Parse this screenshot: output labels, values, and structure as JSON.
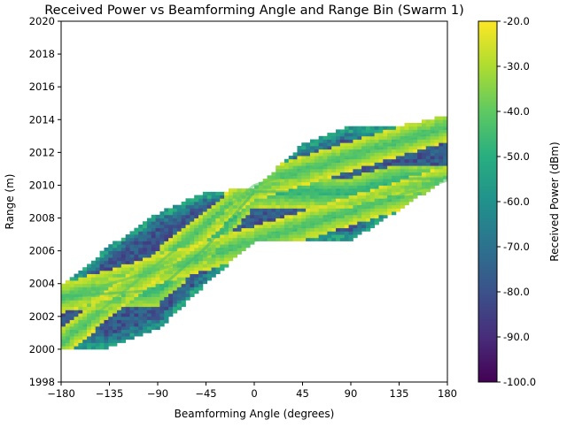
{
  "chart_data": {
    "type": "heatmap",
    "title": "Received Power vs Beamforming Angle and Range Bin (Swarm 1)",
    "xlabel": "Beamforming Angle (degrees)",
    "ylabel": "Range (m)",
    "xlim": [
      -180,
      180
    ],
    "ylim": [
      1998,
      2020
    ],
    "xticks": [
      -180,
      -135,
      -90,
      -45,
      0,
      45,
      90,
      135,
      180
    ],
    "xtick_labels": [
      "−180",
      "−135",
      "−90",
      "−45",
      "0",
      "45",
      "90",
      "135",
      "180"
    ],
    "yticks": [
      1998,
      2000,
      2002,
      2004,
      2006,
      2008,
      2010,
      2012,
      2014,
      2016,
      2018,
      2020
    ],
    "ytick_labels": [
      "1998",
      "2000",
      "2002",
      "2004",
      "2006",
      "2008",
      "2010",
      "2012",
      "2014",
      "2016",
      "2018",
      "2020"
    ],
    "colorbar": {
      "label": "Received Power (dBm)",
      "colormap": "viridis",
      "range": [
        -100,
        -20
      ],
      "ticks": [
        -20,
        -30,
        -40,
        -50,
        -60,
        -70,
        -80,
        -90,
        -100
      ],
      "tick_labels": [
        "-20.0",
        "-30.0",
        "-40.0",
        "-50.0",
        "-60.0",
        "-70.0",
        "-80.0",
        "-90.0",
        "-100.0"
      ]
    },
    "region": {
      "description_angles": [
        -180,
        -135,
        -90,
        -45,
        0,
        45,
        90,
        135,
        180
      ],
      "lower_range": [
        2000.0,
        2000.1,
        2001.2,
        2004.0,
        2006.6,
        2006.6,
        2006.6,
        2008.5,
        2010.4
      ],
      "upper_range": [
        2003.8,
        2006.3,
        2008.3,
        2009.6,
        2009.8,
        2012.5,
        2013.6,
        2013.6,
        2014.3
      ],
      "background_level": -78
    },
    "ridges": [
      {
        "angle": [
          -180,
          0,
          180
        ],
        "range": [
          2003.1,
          2006.6,
          2010.3
        ],
        "level": -45
      },
      {
        "angle": [
          -180,
          0,
          180
        ],
        "range": [
          2000.4,
          2010.0,
          2013.6
        ],
        "level": -45
      },
      {
        "angle": [
          -180,
          -90,
          -45,
          0,
          45,
          90,
          135,
          180
        ],
        "range": [
          2003.2,
          2003.6,
          2006.2,
          2009.6,
          2009.6,
          2009.6,
          2010.4,
          2010.4
        ],
        "level": -50
      }
    ]
  }
}
